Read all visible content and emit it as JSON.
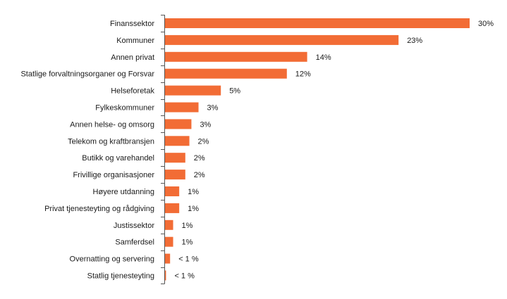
{
  "chart_data": {
    "type": "bar",
    "orientation": "horizontal",
    "title": "",
    "xlabel": "",
    "ylabel": "",
    "xlim": [
      0,
      30
    ],
    "grid": false,
    "bar_color": "#f26c35",
    "categories": [
      "Finanssektor",
      "Kommuner",
      "Annen privat",
      "Statlige forvaltningsorganer og Forsvar",
      "Helseforetak",
      "Fylkeskommuner",
      "Annen helse- og omsorg",
      "Telekom og kraftbransjen",
      "Butikk og varehandel",
      "Frivillige organisasjoner",
      "Høyere utdanning",
      "Privat tjenesteyting og rådgiving",
      "Justissektor",
      "Samferdsel",
      "Overnatting og servering",
      "Statlig tjenesteyting"
    ],
    "values": [
      30,
      23,
      14,
      12,
      5.5,
      3.3,
      2.6,
      2.4,
      2.0,
      2.0,
      1.4,
      1.4,
      0.8,
      0.8,
      0.5,
      0.1
    ],
    "value_labels": [
      "30%",
      "23%",
      "14%",
      "12%",
      "5%",
      "3%",
      "3%",
      "2%",
      "2%",
      "2%",
      "1%",
      "1%",
      "1%",
      "1%",
      "< 1 %",
      "< 1 %"
    ]
  }
}
